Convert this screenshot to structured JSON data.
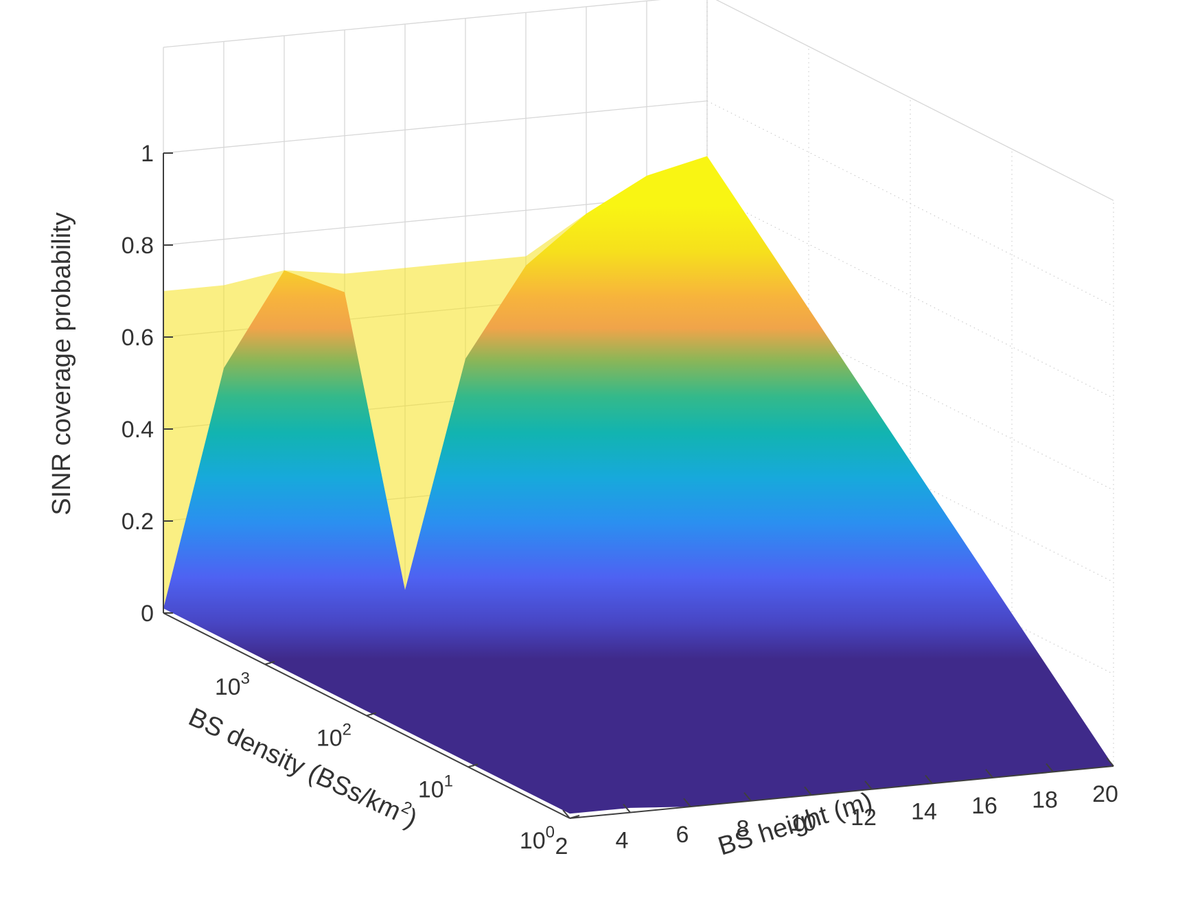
{
  "chart_data": {
    "type": "surface",
    "title": "",
    "xlabel_base": "BS height (m)",
    "ylabel_main": "BS density (BSs/km",
    "ylabel_sup": "2",
    "ylabel_end": ")",
    "zlabel": "SINR coverage probability",
    "x_axis": {
      "name": "BS height",
      "unit": "m",
      "range": [
        2,
        20
      ],
      "ticks": [
        2,
        4,
        6,
        8,
        10,
        12,
        14,
        16,
        18,
        20
      ],
      "tick_labels": [
        "2",
        "4",
        "6",
        "8",
        "10",
        "12",
        "14",
        "16",
        "18",
        "20"
      ]
    },
    "y_axis": {
      "name": "BS density",
      "unit": "BSs/km^2",
      "scale": "log",
      "range": [
        1,
        10000
      ],
      "ticks": [
        1,
        10,
        100,
        1000
      ],
      "tick_base": [
        "10",
        "10",
        "10",
        "10"
      ],
      "tick_exp": [
        "0",
        "1",
        "2",
        "3"
      ]
    },
    "z_axis": {
      "name": "SINR coverage probability",
      "range": [
        0,
        1
      ],
      "ticks": [
        0,
        0.2,
        0.4,
        0.6,
        0.8,
        1
      ],
      "tick_labels": [
        "0",
        "0.2",
        "0.4",
        "0.6",
        "0.8",
        "1"
      ]
    },
    "grid": true,
    "colormap": "parula",
    "surface": {
      "heights_m": [
        2,
        4,
        6,
        8,
        10,
        12,
        14,
        16,
        18,
        20
      ],
      "density_samples_BSs_per_km2": [
        1,
        10,
        100,
        1000,
        10000
      ],
      "coverage_at_lowest_density": [
        0.01,
        0.01,
        0.0,
        0.0,
        0.0,
        0.0,
        0.0,
        0.0,
        0.0,
        0.0
      ],
      "coverage_at_highest_density": [
        0.01,
        0.52,
        0.72,
        0.66,
        0.0,
        0.49,
        0.68,
        0.78,
        0.85,
        0.88
      ],
      "ridge_peak_coverage": 0.88,
      "notch_height_m": 10,
      "notch_min_coverage": -0.02
    }
  }
}
